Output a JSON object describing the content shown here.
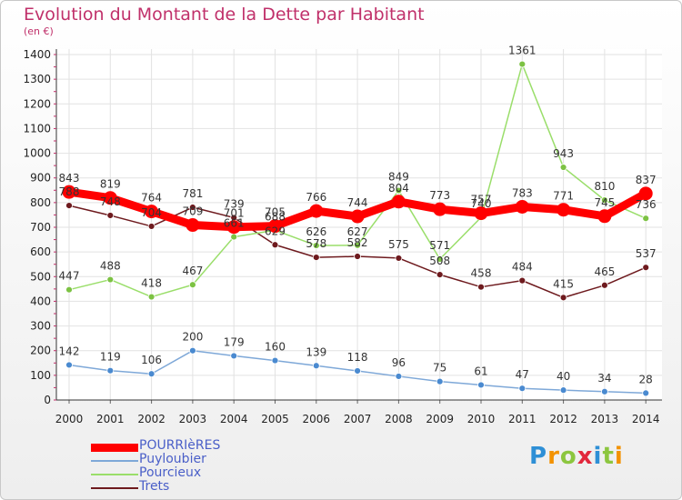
{
  "title": "Evolution du Montant de la Dette par Habitant",
  "subtitle": "(en €)",
  "logo": {
    "text": "Proxiti",
    "letters": [
      {
        "ch": "P",
        "color": "#2e8fd6"
      },
      {
        "ch": "r",
        "color": "#f39200"
      },
      {
        "ch": "o",
        "color": "#8cc63f"
      },
      {
        "ch": "x",
        "color": "#e2273c"
      },
      {
        "ch": "i",
        "color": "#2e8fd6"
      },
      {
        "ch": "t",
        "color": "#8cc63f"
      },
      {
        "ch": "i",
        "color": "#f39200"
      }
    ]
  },
  "chart_data": {
    "type": "line",
    "title": "Evolution du Montant de la Dette par Habitant",
    "subtitle": "(en €)",
    "xlabel": "",
    "ylabel": "",
    "x": [
      "2000",
      "2001",
      "2002",
      "2003",
      "2004",
      "2005",
      "2006",
      "2007",
      "2008",
      "2009",
      "2010",
      "2011",
      "2012",
      "2013",
      "2014"
    ],
    "ylim": [
      0,
      1400
    ],
    "yticks": [
      0,
      100,
      200,
      300,
      400,
      500,
      600,
      700,
      800,
      900,
      1000,
      1100,
      1200,
      1300,
      1400
    ],
    "grid": true,
    "legend_position": "bottom-left",
    "series": [
      {
        "name": "Trets",
        "color": "#6e1a1e",
        "marker": "#6e1a1e",
        "values": [
          788,
          748,
          704,
          781,
          739,
          629,
          578,
          582,
          575,
          508,
          458,
          484,
          415,
          465,
          537
        ]
      },
      {
        "name": "Pourcieux",
        "color": "#9ade6a",
        "marker": "#7cc243",
        "values": [
          447,
          488,
          418,
          467,
          661,
          688,
          626,
          627,
          849,
          571,
          740,
          1361,
          943,
          810,
          736
        ]
      },
      {
        "name": "Puyloubier",
        "color": "#7ea8d8",
        "marker": "#4a8ad0",
        "values": [
          142,
          119,
          106,
          200,
          179,
          160,
          139,
          118,
          96,
          75,
          61,
          47,
          40,
          34,
          28
        ]
      },
      {
        "name": "POURRIèRES",
        "color": "#ff0000",
        "marker": "#ff0000",
        "values": [
          843,
          819,
          764,
          709,
          701,
          705,
          766,
          744,
          804,
          773,
          757,
          783,
          771,
          745,
          837
        ]
      }
    ],
    "legend": [
      "POURRIèRES",
      "Puyloubier",
      "Pourcieux",
      "Trets"
    ]
  }
}
